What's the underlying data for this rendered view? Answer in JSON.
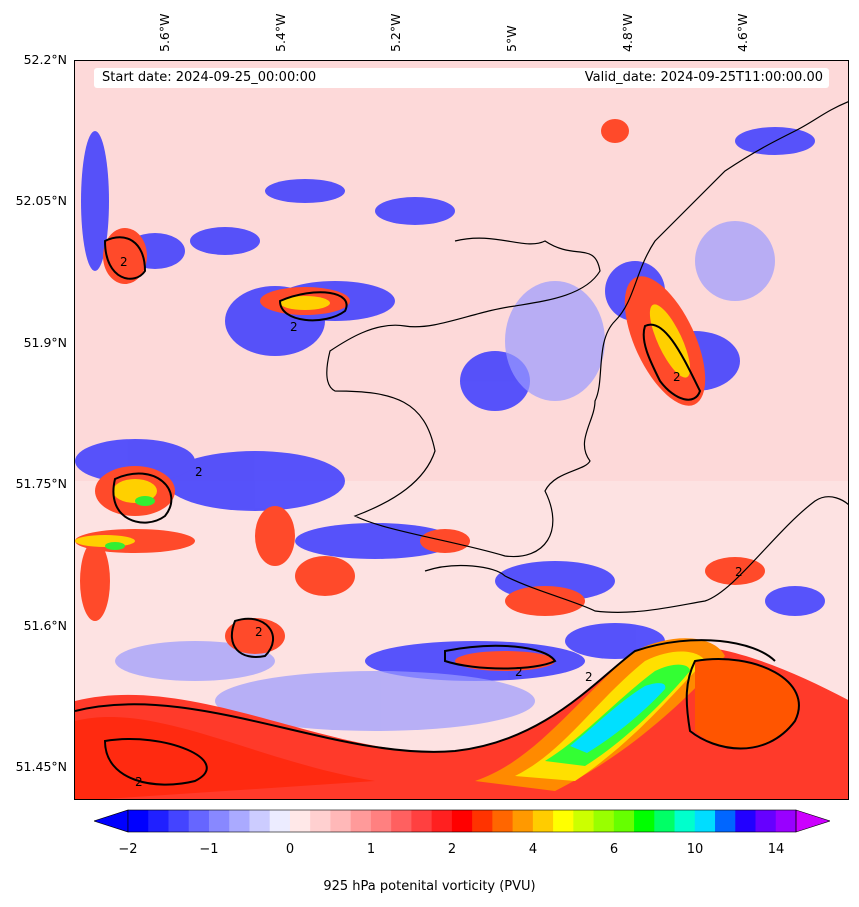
{
  "map": {
    "info_start": "Start date: 2024-09-25_00:00:00",
    "info_valid": "Valid_date: 2024-09-25T11:00:00.00",
    "lon_labels": [
      "5.6°W",
      "5.4°W",
      "5.2°W",
      "5°W",
      "4.8°W",
      "4.6°W"
    ],
    "lat_labels": [
      "52.2°N",
      "52.05°N",
      "51.9°N",
      "51.75°N",
      "51.6°N",
      "51.45°N"
    ],
    "contour_label": "2"
  },
  "colorbar": {
    "title": "925 hPa potenital vorticity (PVU)",
    "tick_labels": [
      "−2",
      "−1",
      "0",
      "1",
      "2",
      "4",
      "6",
      "10",
      "14"
    ],
    "colors": [
      "#0000ff",
      "#2020ff",
      "#4444ff",
      "#6666ff",
      "#8888ff",
      "#aaaaff",
      "#ccccff",
      "#ececff",
      "#ffe8e8",
      "#ffd0d0",
      "#ffb8b8",
      "#ff9a9a",
      "#ff8080",
      "#ff6060",
      "#ff4040",
      "#ff2020",
      "#ff0000",
      "#ff3300",
      "#ff6600",
      "#ff9900",
      "#ffcc00",
      "#ffff00",
      "#ccff00",
      "#99ff00",
      "#66ff00",
      "#00ff00",
      "#00ff66",
      "#00ffcc",
      "#00ddff",
      "#0066ff",
      "#2200ff",
      "#6600ff",
      "#9900ff"
    ],
    "under_color": "#0000ff",
    "over_color": "#cc00ff"
  }
}
